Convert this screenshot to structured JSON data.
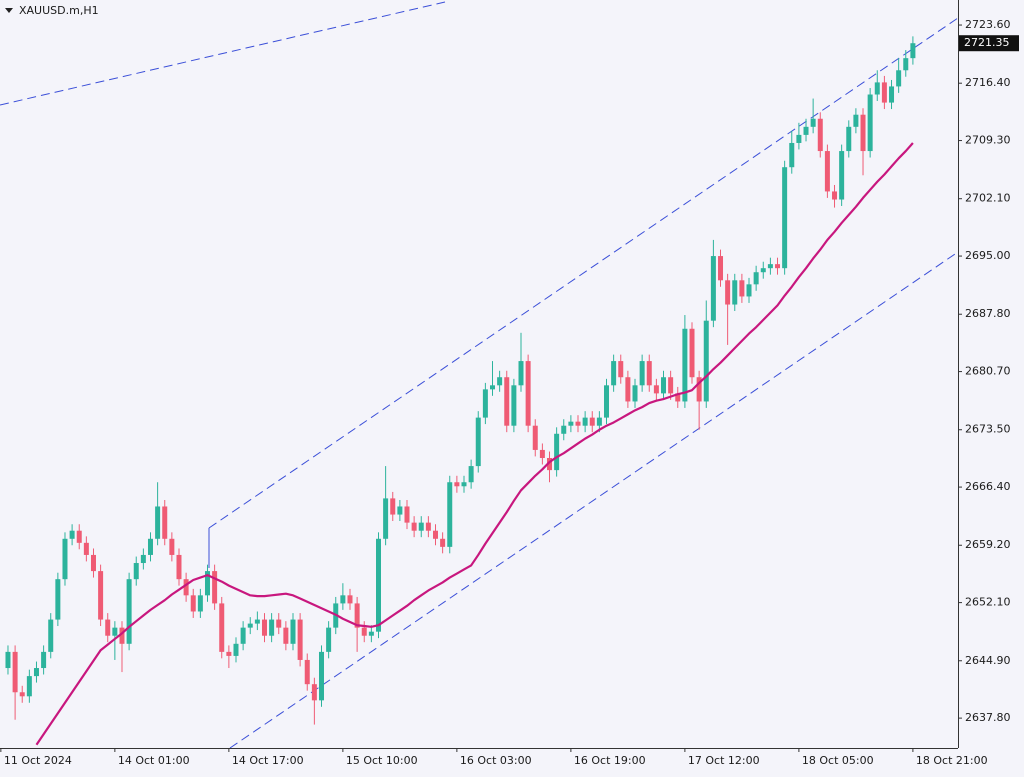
{
  "chart_data": {
    "type": "candlestick",
    "title": "XAUUSD.m,H1",
    "up_color": "#2cb39c",
    "down_color": "#ef5b74",
    "open": [
      2644,
      2646,
      2641,
      2640.5,
      2643,
      2644,
      2646,
      2650,
      2655,
      2660,
      2661,
      2659.5,
      2658,
      2656,
      2650,
      2648,
      2649,
      2647,
      2655,
      2657,
      2658,
      2660,
      2664,
      2660,
      2658,
      2655,
      2653,
      2651,
      2653,
      2656,
      2652,
      2646,
      2645.5,
      2647,
      2649,
      2649.5,
      2650,
      2648,
      2650,
      2649,
      2647,
      2650,
      2645,
      2642,
      2640,
      2646,
      2649,
      2652,
      2653,
      2652,
      2649,
      2648,
      2648.5,
      2660,
      2665,
      2663,
      2664,
      2662,
      2661,
      2662,
      2661,
      2660,
      2659,
      2667,
      2666.5,
      2667,
      2669,
      2675,
      2678.5,
      2679,
      2680,
      2674,
      2679,
      2682,
      2674,
      2671,
      2670,
      2668.5,
      2673,
      2674,
      2674.5,
      2674,
      2675,
      2674,
      2675,
      2679,
      2682,
      2680,
      2677,
      2679,
      2682,
      2679,
      2678,
      2680,
      2678,
      2677,
      2686,
      2680,
      2677,
      2687,
      2695,
      2692,
      2689,
      2692,
      2690,
      2691.5,
      2693,
      2693.5,
      2694,
      2693.5,
      2706,
      2709,
      2710,
      2711,
      2712,
      2708,
      2703,
      2702,
      2708,
      2711,
      2712.5,
      2708,
      2715,
      2716.5,
      2714,
      2716,
      2718,
      2719.5
    ],
    "high": [
      2646.8,
      2646.8,
      2641.8,
      2643.8,
      2644.8,
      2646.8,
      2650.8,
      2655.8,
      2660.8,
      2661.8,
      2661.8,
      2660.3,
      2658.8,
      2656.8,
      2650.8,
      2649.8,
      2649.8,
      2655.8,
      2657.8,
      2658.8,
      2660.8,
      2667,
      2664.8,
      2660.8,
      2658.8,
      2655.8,
      2653.8,
      2653.8,
      2656.8,
      2656.8,
      2652.8,
      2646.8,
      2647.8,
      2649.8,
      2650.3,
      2651,
      2650.8,
      2650.8,
      2650.8,
      2649.8,
      2650.8,
      2650.8,
      2645.8,
      2642.8,
      2646.8,
      2649.8,
      2652.8,
      2654.5,
      2653.8,
      2652.8,
      2649.8,
      2649.3,
      2660.8,
      2669,
      2665.8,
      2664.8,
      2664.8,
      2662.8,
      2662.8,
      2662.8,
      2661.8,
      2660.8,
      2667.8,
      2667.8,
      2667.8,
      2669.8,
      2675.8,
      2679.3,
      2682,
      2680.8,
      2680.8,
      2679.8,
      2685.5,
      2682.8,
      2674.8,
      2671.8,
      2670.8,
      2673.8,
      2674.8,
      2675.3,
      2675.3,
      2675.8,
      2675.8,
      2675.8,
      2679.8,
      2682.8,
      2682.8,
      2680.8,
      2679.8,
      2682.8,
      2682.8,
      2679.8,
      2680.8,
      2680.8,
      2678.8,
      2687.7,
      2686.8,
      2680.8,
      2689.5,
      2697,
      2695.8,
      2692.8,
      2692.8,
      2692.8,
      2692.3,
      2693.8,
      2694.3,
      2694.8,
      2694.8,
      2706.8,
      2710.5,
      2711.5,
      2712,
      2714.5,
      2712.8,
      2708.8,
      2703.8,
      2708.8,
      2711.8,
      2713.3,
      2713.3,
      2715.8,
      2718,
      2717.3,
      2716.8,
      2719.5,
      2720.5,
      2722.2
    ],
    "low": [
      2643.2,
      2637.6,
      2639.7,
      2639.7,
      2642.2,
      2643.2,
      2645.2,
      2649.2,
      2654.2,
      2659.2,
      2658.7,
      2657.2,
      2655.2,
      2649.2,
      2647.2,
      2645,
      2643.5,
      2646.2,
      2654.2,
      2656.2,
      2657.2,
      2659.2,
      2659.2,
      2657.2,
      2654.2,
      2652.2,
      2650.2,
      2650.2,
      2652.2,
      2651.2,
      2645.2,
      2644,
      2644.7,
      2646.2,
      2648.2,
      2648.7,
      2647.2,
      2647.2,
      2648.2,
      2646.2,
      2646.2,
      2644.2,
      2641.2,
      2637,
      2639.2,
      2645.2,
      2648.2,
      2651.2,
      2651.2,
      2646,
      2647.2,
      2647.2,
      2647.7,
      2659.2,
      2662.2,
      2662.2,
      2661.2,
      2660.2,
      2660.2,
      2660.2,
      2659.2,
      2658.2,
      2658.2,
      2665.7,
      2665.7,
      2666.2,
      2668.2,
      2674.2,
      2677.7,
      2678.2,
      2673.2,
      2673.2,
      2678.2,
      2673.2,
      2670.2,
      2669.2,
      2667,
      2667.7,
      2672.2,
      2673.2,
      2673.2,
      2673.2,
      2673.2,
      2673.2,
      2674.2,
      2678.2,
      2679.2,
      2676.2,
      2676.2,
      2678.2,
      2678.2,
      2677.2,
      2677.2,
      2677.2,
      2676.2,
      2676.2,
      2679.2,
      2673.5,
      2676.2,
      2686.2,
      2691.2,
      2684,
      2688.2,
      2689.2,
      2689.2,
      2690.7,
      2692.2,
      2692.7,
      2692.7,
      2692.7,
      2705.2,
      2708.2,
      2709.2,
      2710.2,
      2707.2,
      2702.2,
      2701,
      2701.2,
      2707.2,
      2710.2,
      2705,
      2707.2,
      2714.2,
      2713.2,
      2713.2,
      2715.2,
      2717.2,
      2718.7
    ],
    "close": [
      2646,
      2641,
      2640.5,
      2643,
      2644,
      2646,
      2650,
      2655,
      2660,
      2661,
      2659.5,
      2658,
      2656,
      2650,
      2648,
      2649,
      2647,
      2655,
      2657,
      2658,
      2660,
      2664,
      2660,
      2658,
      2655,
      2653,
      2651,
      2653,
      2656,
      2652,
      2646,
      2645.5,
      2647,
      2649,
      2649.5,
      2650,
      2648,
      2650,
      2649,
      2647,
      2650,
      2645,
      2642,
      2640,
      2646,
      2649,
      2652,
      2653,
      2652,
      2649,
      2648,
      2648.5,
      2660,
      2665,
      2663,
      2664,
      2662,
      2661,
      2662,
      2661,
      2660,
      2659,
      2667,
      2666.5,
      2667,
      2669,
      2675,
      2678.5,
      2679,
      2680,
      2674,
      2679,
      2682,
      2674,
      2671,
      2670,
      2668.5,
      2673,
      2674,
      2674.5,
      2674,
      2675,
      2674,
      2675,
      2679,
      2682,
      2680,
      2677,
      2679,
      2682,
      2679,
      2678,
      2680,
      2678,
      2677,
      2686,
      2680,
      2677,
      2687,
      2695,
      2692,
      2689,
      2692,
      2690,
      2691.5,
      2693,
      2693.5,
      2694,
      2693.5,
      2706,
      2709,
      2710,
      2711,
      2712,
      2708,
      2703,
      2702,
      2708,
      2711,
      2712.5,
      2708,
      2715,
      2716.5,
      2714,
      2716,
      2718,
      2719.5,
      2721.35
    ],
    "moving_average": {
      "color": "#c8177e",
      "values": [
        null,
        null,
        null,
        null,
        2634.5,
        2635.8,
        2637.1,
        2638.4,
        2639.7,
        2641.0,
        2642.3,
        2643.6,
        2644.9,
        2646.2,
        2646.9,
        2647.6,
        2648.3,
        2649.1,
        2649.8,
        2650.5,
        2651.2,
        2651.8,
        2652.4,
        2653.1,
        2653.7,
        2654.3,
        2654.9,
        2655.2,
        2655.5,
        2655.1,
        2654.7,
        2654.2,
        2653.8,
        2653.4,
        2653.0,
        2652.9,
        2652.9,
        2653.0,
        2653.1,
        2653.2,
        2653.0,
        2652.6,
        2652.2,
        2651.8,
        2651.4,
        2651.0,
        2650.6,
        2650.1,
        2649.7,
        2649.3,
        2649.2,
        2649.1,
        2649.3,
        2649.9,
        2650.5,
        2651.1,
        2651.7,
        2652.4,
        2653.0,
        2653.6,
        2654.1,
        2654.6,
        2655.2,
        2655.7,
        2656.2,
        2656.7,
        2658.0,
        2659.4,
        2660.7,
        2662.0,
        2663.3,
        2664.7,
        2666.0,
        2666.9,
        2667.8,
        2668.6,
        2669.5,
        2670.1,
        2670.6,
        2671.2,
        2671.8,
        2672.4,
        2672.9,
        2673.5,
        2674.0,
        2674.4,
        2674.9,
        2675.4,
        2675.9,
        2676.3,
        2676.8,
        2677.1,
        2677.3,
        2677.6,
        2677.9,
        2678.1,
        2678.4,
        2679.3,
        2680.1,
        2681.0,
        2681.8,
        2682.7,
        2683.6,
        2684.5,
        2685.4,
        2686.2,
        2687.1,
        2688.0,
        2688.9,
        2690.1,
        2691.2,
        2692.4,
        2693.5,
        2694.7,
        2695.8,
        2697.0,
        2698.0,
        2699.1,
        2700.1,
        2701.1,
        2702.2,
        2703.2,
        2704.2,
        2705.1,
        2706.1,
        2707.1,
        2708.0,
        2709.0
      ]
    },
    "last_price": 2721.35,
    "xlim": [
      -1.12,
      133.33
    ],
    "xticks": [
      {
        "value": -1,
        "label": "11 Oct 2024"
      },
      {
        "value": 15,
        "label": "14 Oct 01:00"
      },
      {
        "value": 31,
        "label": "14 Oct 17:00"
      },
      {
        "value": 47,
        "label": "15 Oct 10:00"
      },
      {
        "value": 63,
        "label": "16 Oct 03:00"
      },
      {
        "value": 79,
        "label": "16 Oct 19:00"
      },
      {
        "value": 95,
        "label": "17 Oct 12:00"
      },
      {
        "value": 111,
        "label": "18 Oct 05:00"
      },
      {
        "value": 127,
        "label": "18 Oct 21:00"
      }
    ],
    "ylim": [
      2634.1,
      2726.7
    ],
    "yticks": [
      {
        "value": 2637.8,
        "label": "2637.80"
      },
      {
        "value": 2644.9,
        "label": "2644.90"
      },
      {
        "value": 2652.1,
        "label": "2652.10"
      },
      {
        "value": 2659.2,
        "label": "2659.20"
      },
      {
        "value": 2666.4,
        "label": "2666.40"
      },
      {
        "value": 2673.5,
        "label": "2673.50"
      },
      {
        "value": 2680.7,
        "label": "2680.70"
      },
      {
        "value": 2687.8,
        "label": "2687.80"
      },
      {
        "value": 2695,
        "label": "2695.00"
      },
      {
        "value": 2702.1,
        "label": "2702.10"
      },
      {
        "value": 2709.3,
        "label": "2709.30"
      },
      {
        "value": 2716.4,
        "label": "2716.40"
      },
      {
        "value": 2723.6,
        "label": "2723.60"
      }
    ]
  }
}
